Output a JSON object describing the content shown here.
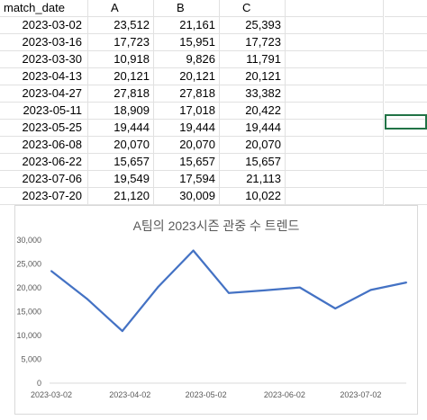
{
  "sheet": {
    "headers": [
      "match_date",
      "A",
      "B",
      "C"
    ],
    "rows": [
      [
        "2023-03-02",
        "23,512",
        "21,161",
        "25,393"
      ],
      [
        "2023-03-16",
        "17,723",
        "15,951",
        "17,723"
      ],
      [
        "2023-03-30",
        "10,918",
        "9,826",
        "11,791"
      ],
      [
        "2023-04-13",
        "20,121",
        "20,121",
        "20,121"
      ],
      [
        "2023-04-27",
        "27,818",
        "27,818",
        "33,382"
      ],
      [
        "2023-05-11",
        "18,909",
        "17,018",
        "20,422"
      ],
      [
        "2023-05-25",
        "19,444",
        "19,444",
        "19,444"
      ],
      [
        "2023-06-08",
        "20,070",
        "20,070",
        "20,070"
      ],
      [
        "2023-06-22",
        "15,657",
        "15,657",
        "15,657"
      ],
      [
        "2023-07-06",
        "19,549",
        "17,594",
        "21,113"
      ],
      [
        "2023-07-20",
        "21,120",
        "30,009",
        "10,022"
      ]
    ]
  },
  "chart_data": {
    "type": "line",
    "title": "A팀의 2023시즌 관중 수 트렌드",
    "xlabel": "",
    "ylabel": "",
    "x": [
      "2023-03-02",
      "2023-03-16",
      "2023-03-30",
      "2023-04-13",
      "2023-04-27",
      "2023-05-11",
      "2023-05-25",
      "2023-06-08",
      "2023-06-22",
      "2023-07-06",
      "2023-07-20"
    ],
    "values": [
      23512,
      17723,
      10918,
      20121,
      27818,
      18909,
      19444,
      20070,
      15657,
      19549,
      21120
    ],
    "ylim": [
      0,
      30000
    ],
    "yticks": [
      "0",
      "5,000",
      "10,000",
      "15,000",
      "20,000",
      "25,000",
      "30,000"
    ],
    "xtick_labels": [
      "2023-03-02",
      "2023-04-02",
      "2023-05-02",
      "2023-06-02",
      "2023-07-02"
    ],
    "xtick_dates": [
      "2023-03-02",
      "2023-04-02",
      "2023-05-02",
      "2023-06-02",
      "2023-07-02"
    ],
    "line_color": "#4472c4",
    "grid": false,
    "legend": "none"
  }
}
